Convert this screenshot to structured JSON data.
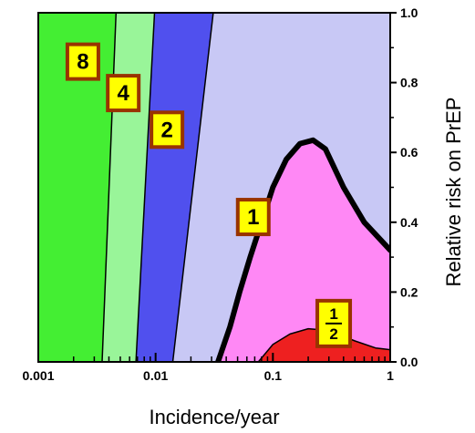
{
  "chart_data": {
    "type": "area",
    "xlabel": "Incidence/year",
    "ylabel": "Relative risk on PrEP",
    "x_scale": "log",
    "xlim": [
      0.001,
      1
    ],
    "ylim": [
      0,
      1
    ],
    "x_ticks": [
      {
        "value": 0.001,
        "label": "0.001"
      },
      {
        "value": 0.01,
        "label": "0.01"
      },
      {
        "value": 0.1,
        "label": "0.1"
      },
      {
        "value": 1,
        "label": "1"
      }
    ],
    "y_ticks": [
      {
        "value": 0.0,
        "label": "0.0"
      },
      {
        "value": 0.2,
        "label": "0.2"
      },
      {
        "value": 0.4,
        "label": "0.4"
      },
      {
        "value": 0.6,
        "label": "0.6"
      },
      {
        "value": 0.8,
        "label": "0.8"
      },
      {
        "value": 1.0,
        "label": "1.0"
      }
    ],
    "grid": false,
    "legend": "none",
    "regions": [
      {
        "label": "8",
        "color": "#44ee33",
        "label_at": [
          0.0024,
          0.86
        ]
      },
      {
        "label": "4",
        "color": "#99f599",
        "label_at": [
          0.0053,
          0.77
        ]
      },
      {
        "label": "2",
        "color": "#5050ee",
        "label_at": [
          0.0125,
          0.665
        ]
      },
      {
        "label": "1",
        "color": "#c8c8f5",
        "label_at": [
          0.068,
          0.415
        ]
      },
      {
        "label": "",
        "color": "#ff88f5"
      },
      {
        "label_num": "1",
        "label_den": "2",
        "color": "#ee2020",
        "label_at": [
          0.33,
          0.11
        ]
      }
    ],
    "boundaries": [
      {
        "between": "8|4",
        "points": [
          [
            0.0046,
            1.0
          ],
          [
            0.0035,
            0.0
          ]
        ]
      },
      {
        "between": "4|2",
        "points": [
          [
            0.0098,
            1.0
          ],
          [
            0.0068,
            0.0
          ]
        ]
      },
      {
        "between": "2|1",
        "points": [
          [
            0.031,
            1.0
          ],
          [
            0.014,
            0.0
          ]
        ]
      },
      {
        "between": "1|pink",
        "bold": true,
        "points": [
          [
            0.034,
            0.0
          ],
          [
            0.043,
            0.1
          ],
          [
            0.052,
            0.2
          ],
          [
            0.064,
            0.3
          ],
          [
            0.08,
            0.4
          ],
          [
            0.1,
            0.5
          ],
          [
            0.13,
            0.58
          ],
          [
            0.17,
            0.625
          ],
          [
            0.22,
            0.635
          ],
          [
            0.28,
            0.61
          ],
          [
            0.4,
            0.5
          ],
          [
            0.6,
            0.4
          ],
          [
            1.0,
            0.32
          ]
        ]
      },
      {
        "between": "pink|1/2",
        "points": [
          [
            0.075,
            0.0
          ],
          [
            0.1,
            0.05
          ],
          [
            0.14,
            0.08
          ],
          [
            0.2,
            0.095
          ],
          [
            0.3,
            0.09
          ],
          [
            0.5,
            0.06
          ],
          [
            0.75,
            0.04
          ],
          [
            1.0,
            0.035
          ]
        ]
      }
    ],
    "colors": {
      "label_fill": "#ffff00",
      "label_border": "#993300",
      "axis": "#000000"
    }
  }
}
